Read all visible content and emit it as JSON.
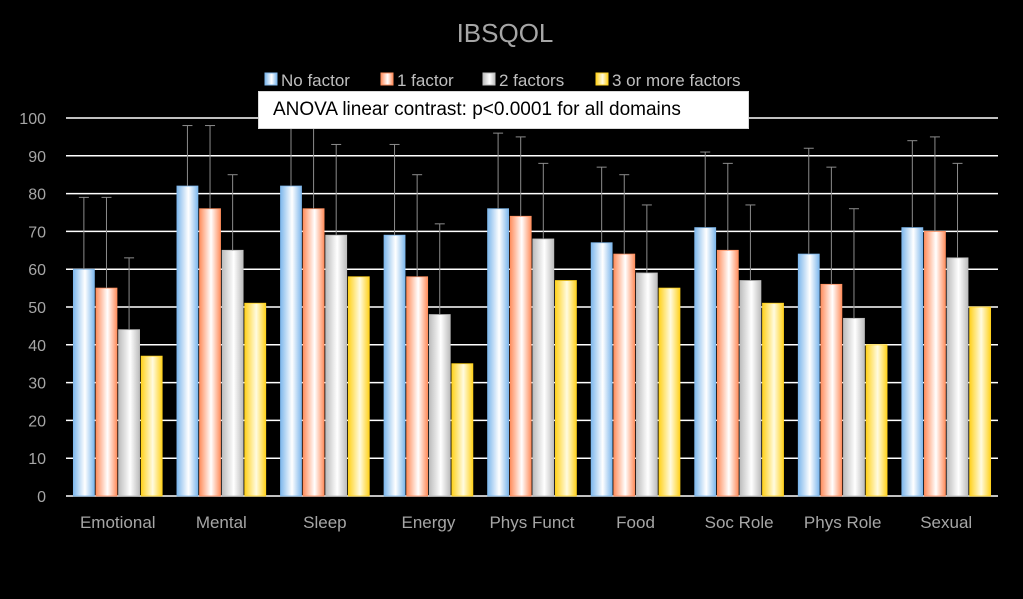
{
  "chart_data": {
    "type": "bar",
    "title": "IBSQOL",
    "annotation": {
      "prefix": "ANOVA linear contrast: ",
      "pvalue": "p<0.0001",
      "suffix": " for all domains"
    },
    "categories": [
      "Emotional",
      "Mental",
      "Sleep",
      "Energy",
      "Phys Funct",
      "Food",
      "Soc Role",
      "Phys Role",
      "Sexual"
    ],
    "series": [
      {
        "name": "No factor",
        "values": [
          60,
          82,
          82,
          69,
          76,
          67,
          71,
          64,
          71
        ],
        "error_upper": [
          79,
          98,
          98,
          93,
          96,
          87,
          91,
          92,
          94
        ],
        "colors": [
          "#7fb8ec",
          "#ffffff"
        ]
      },
      {
        "name": "1 factor",
        "values": [
          55,
          76,
          76,
          58,
          74,
          64,
          65,
          56,
          70
        ],
        "error_upper": [
          79,
          98,
          98,
          85,
          95,
          85,
          88,
          87,
          95
        ],
        "colors": [
          "#ff8f5f",
          "#ffffff"
        ]
      },
      {
        "name": "2 factors",
        "values": [
          44,
          65,
          69,
          48,
          68,
          59,
          57,
          47,
          63
        ],
        "error_upper": [
          63,
          85,
          93,
          72,
          88,
          77,
          77,
          76,
          88
        ],
        "colors": [
          "#bdbdbd",
          "#ffffff"
        ]
      },
      {
        "name": "3 or more factors",
        "values": [
          37,
          51,
          58,
          35,
          57,
          55,
          51,
          40,
          50
        ],
        "error_upper": [
          37,
          51,
          58,
          35,
          57,
          55,
          51,
          40,
          50
        ],
        "colors": [
          "#ffd21f",
          "#fffbe0"
        ]
      }
    ],
    "ylim": [
      0,
      100
    ],
    "yticks": [
      0,
      10,
      20,
      30,
      40,
      50,
      60,
      70,
      80,
      90,
      100
    ],
    "grid": true,
    "legend_position": "top",
    "xlabel": "",
    "ylabel": ""
  }
}
